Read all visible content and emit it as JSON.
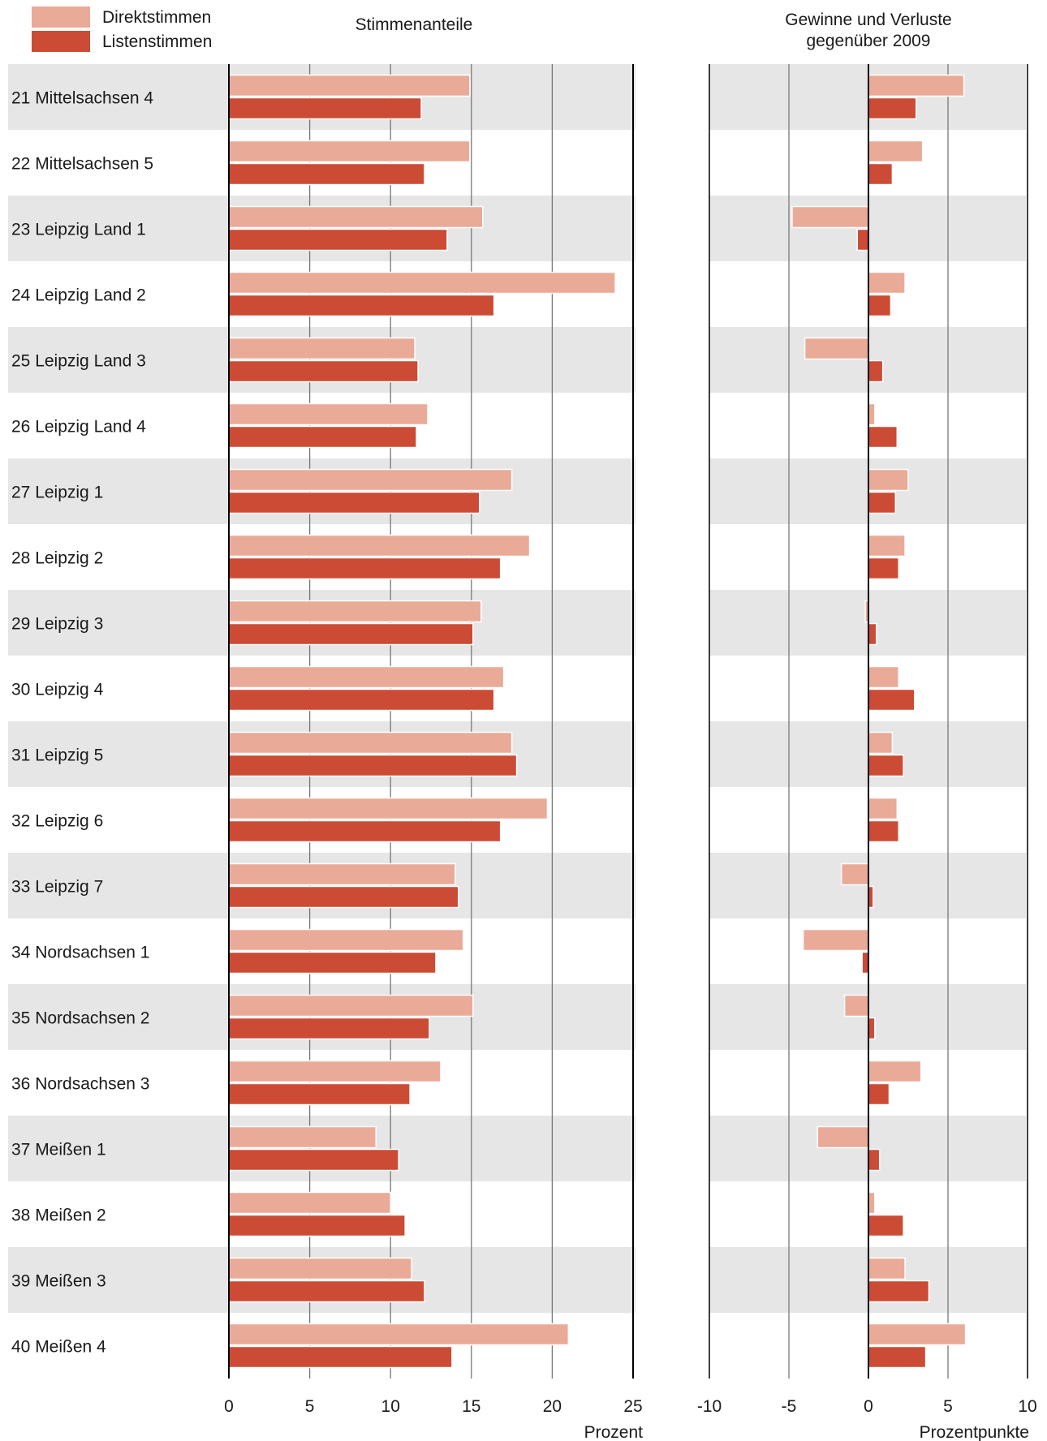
{
  "legend": {
    "direct_label": "Direktstimmen",
    "list_label": "Listenstimmen",
    "direct_color": "#eaaa98",
    "list_color": "#cb4b34"
  },
  "headers": {
    "left_title": "Stimmenanteile",
    "right_title_line1": "Gewinne und Verluste",
    "right_title_line2": "gegenüber 2009"
  },
  "colors": {
    "band": "#e6e6e6",
    "grid": "#777777",
    "axis": "#000000"
  },
  "chart_data": [
    {
      "type": "bar",
      "orientation": "horizontal",
      "title": "Stimmenanteile",
      "xlabel": "Prozent",
      "xlim": [
        0,
        25
      ],
      "ticks": [
        0,
        5,
        10,
        15,
        20,
        25
      ],
      "tick_labels": [
        "0",
        "5",
        "10",
        "15",
        "20",
        "25"
      ],
      "grid": true,
      "categories": [
        "21 Mittelsachsen 4",
        "22 Mittelsachsen 5",
        "23 Leipzig Land 1",
        "24 Leipzig Land 2",
        "25 Leipzig Land 3",
        "26 Leipzig Land 4",
        "27 Leipzig 1",
        "28 Leipzig 2",
        "29 Leipzig 3",
        "30 Leipzig 4",
        "31 Leipzig 5",
        "32 Leipzig 6",
        "33 Leipzig 7",
        "34 Nordsachsen 1",
        "35 Nordsachsen 2",
        "36 Nordsachsen 3",
        "37 Meißen 1",
        "38 Meißen 2",
        "39 Meißen 3",
        "40 Meißen 4"
      ],
      "series": [
        {
          "name": "Direktstimmen",
          "values": [
            14.9,
            14.9,
            15.7,
            23.9,
            11.5,
            12.3,
            17.5,
            18.6,
            15.6,
            17.0,
            17.5,
            19.7,
            14.0,
            14.5,
            15.1,
            13.1,
            9.1,
            10.0,
            11.3,
            21.0
          ]
        },
        {
          "name": "Listenstimmen",
          "values": [
            11.9,
            12.1,
            13.5,
            16.4,
            11.7,
            11.6,
            15.5,
            16.8,
            15.1,
            16.4,
            17.8,
            16.8,
            14.2,
            12.8,
            12.4,
            11.2,
            10.5,
            10.9,
            12.1,
            13.8
          ]
        }
      ]
    },
    {
      "type": "bar",
      "orientation": "horizontal",
      "title": "Gewinne und Verluste gegenüber 2009",
      "xlabel": "Prozentpunkte",
      "xlim": [
        -10,
        10
      ],
      "ticks": [
        -10,
        -5,
        0,
        5,
        10
      ],
      "tick_labels": [
        "-10",
        "-5",
        "0",
        "5",
        "10"
      ],
      "grid": true,
      "categories": [
        "21 Mittelsachsen 4",
        "22 Mittelsachsen 5",
        "23 Leipzig Land 1",
        "24 Leipzig Land 2",
        "25 Leipzig Land 3",
        "26 Leipzig Land 4",
        "27 Leipzig 1",
        "28 Leipzig 2",
        "29 Leipzig 3",
        "30 Leipzig 4",
        "31 Leipzig 5",
        "32 Leipzig 6",
        "33 Leipzig 7",
        "34 Nordsachsen 1",
        "35 Nordsachsen 2",
        "36 Nordsachsen 3",
        "37 Meißen 1",
        "38 Meißen 2",
        "39 Meißen 3",
        "40 Meißen 4"
      ],
      "series": [
        {
          "name": "Direktstimmen",
          "values": [
            6.0,
            3.4,
            -4.8,
            2.3,
            -4.0,
            0.4,
            2.5,
            2.3,
            -0.2,
            1.9,
            1.5,
            1.8,
            -1.7,
            -4.1,
            -1.5,
            3.3,
            -3.2,
            0.4,
            2.3,
            6.1
          ]
        },
        {
          "name": "Listenstimmen",
          "values": [
            3.0,
            1.5,
            -0.7,
            1.4,
            0.9,
            1.8,
            1.7,
            1.9,
            0.5,
            2.9,
            2.2,
            1.9,
            0.3,
            -0.4,
            0.4,
            1.3,
            0.7,
            2.2,
            3.8,
            3.6
          ]
        }
      ]
    }
  ]
}
